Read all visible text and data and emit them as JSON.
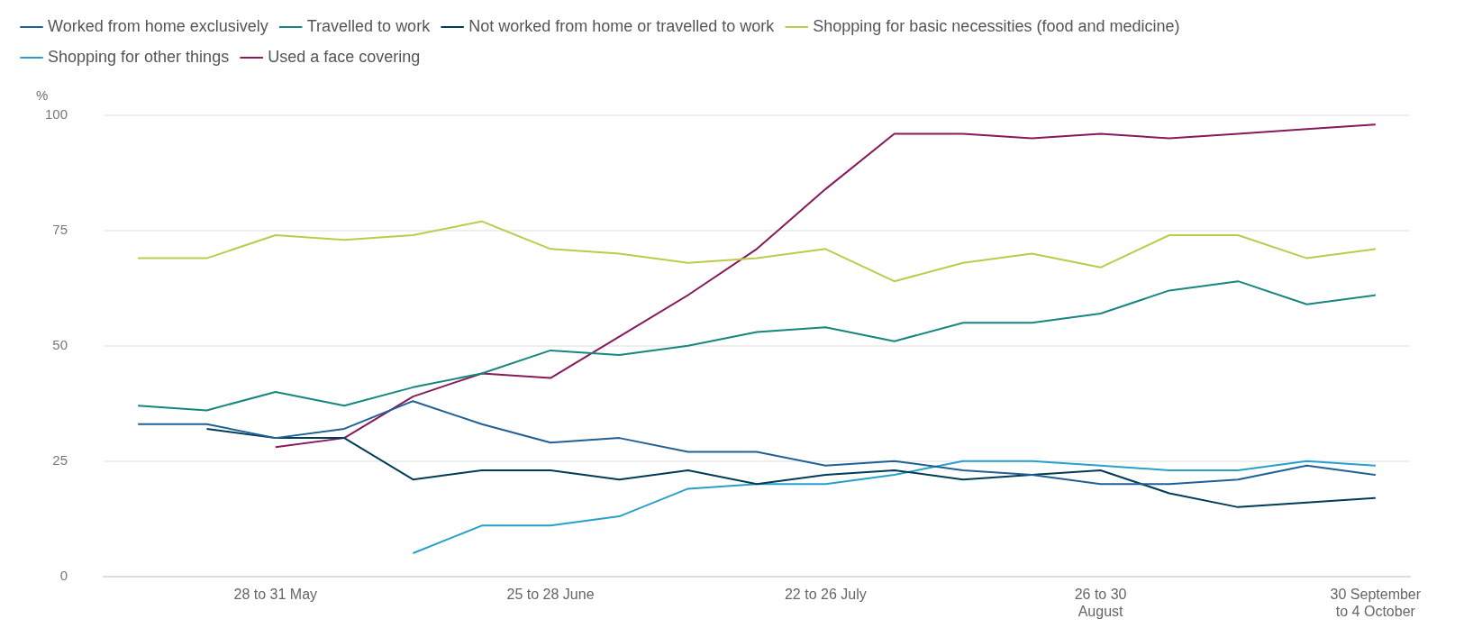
{
  "chart_data": {
    "type": "line",
    "ylabel": "%",
    "categories": [
      null,
      null,
      "28 to 31 May",
      null,
      null,
      null,
      "25 to 28 June",
      null,
      null,
      null,
      "22 to 26 July",
      null,
      null,
      null,
      "26 to 30 August",
      null,
      null,
      null,
      "30 September to 4 October"
    ],
    "series": [
      {
        "name": "Worked from home exclusively",
        "color": "#206095",
        "values": [
          33,
          33,
          30,
          32,
          38,
          33,
          29,
          30,
          27,
          27,
          24,
          25,
          23,
          22,
          20,
          20,
          21,
          24,
          22
        ]
      },
      {
        "name": "Travelled to work",
        "color": "#16867f",
        "values": [
          37,
          36,
          40,
          37,
          41,
          44,
          49,
          48,
          50,
          53,
          54,
          51,
          55,
          55,
          57,
          62,
          64,
          59,
          61
        ]
      },
      {
        "name": "Not worked from home or travelled to work",
        "color": "#003c57",
        "values": [
          null,
          32,
          30,
          30,
          21,
          23,
          23,
          21,
          23,
          20,
          22,
          23,
          21,
          22,
          23,
          18,
          15,
          16,
          17
        ]
      },
      {
        "name": "Shopping for basic necessities (food and medicine)",
        "color": "#bccb4a",
        "values": [
          69,
          69,
          74,
          73,
          74,
          77,
          71,
          70,
          68,
          69,
          71,
          64,
          68,
          70,
          67,
          74,
          74,
          69,
          71
        ]
      },
      {
        "name": "Shopping for other things",
        "color": "#27a0cc",
        "values": [
          null,
          null,
          null,
          null,
          5,
          11,
          11,
          13,
          19,
          20,
          20,
          22,
          25,
          25,
          24,
          23,
          23,
          25,
          24
        ]
      },
      {
        "name": "Used a face covering",
        "color": "#871a5b",
        "values": [
          null,
          null,
          28,
          30,
          39,
          44,
          43,
          52,
          61,
          71,
          84,
          96,
          96,
          95,
          96,
          95,
          96,
          97,
          98
        ]
      }
    ],
    "ylim": [
      0,
      100
    ],
    "yticks": [
      0,
      25,
      50,
      75,
      100
    ],
    "grid": "y",
    "legend": "top left",
    "marker": "none",
    "line_style": "solid"
  }
}
